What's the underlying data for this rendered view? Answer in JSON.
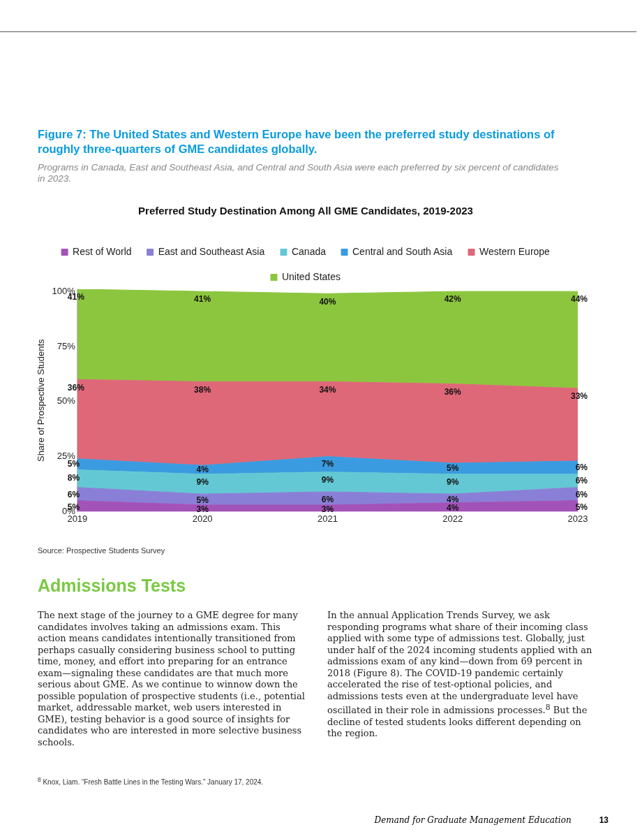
{
  "chart_data": {
    "type": "area",
    "title": "Figure 7: The United States and Western Europe have been the preferred study destinations of roughly three-quarters of GME candidates globally.",
    "subtitle": "Programs in Canada, East and Southeast Asia, and Central and South Asia were each preferred by six percent of candidates in 2023.",
    "annotations": [
      "Preferred Study Destination Among All GME Candidates, 2019-2023",
      "Source: Prospective Students Survey",
      "Admissions Tests",
      "The next stage of the journey to a GME degree for many candidates involves taking an admissions exam. This action means candidates intentionally transitioned from perhaps casually considering business school to putting time, money, and effort into preparing for an entrance exam—signaling these candidates are that much more serious about GME. As we continue to winnow down the possible population of prospective students (i.e., potential market, addressable market, web users interested in GME), testing behavior is a good source of insights for candidates who are interested in more selective business schools.",
      "In the annual Application Trends Survey, we ask responding programs what share of their incoming class applied with some type of admissions test. Globally, just under half of the 2024 incoming students applied with an admissions exam of any kind—down from 69 percent in 2018 (Figure 8). The COVID-19 pandemic certainly accelerated the rise of test-optional policies, and admissions tests even at the undergraduate level have oscillated in their role in admissions processes.$^{8}$ But the decline of tested students looks different depending on the region.",
      "$^{8}$ Knox, Liam. “Fresh Battle Lines in the Testing Wars.” January 17, 2024.",
      "Demand for Graduate Management Education",
      "13"
    ],
    "ylabel": "Share of Prospective Students",
    "categories": [
      "2019",
      "2020",
      "2021",
      "2022",
      "2023"
    ],
    "stacked": true,
    "legend": "top",
    "grid": false,
    "ylim": [
      0,
      101
    ],
    "yticks": [
      {
        "value": 0,
        "label": "0%"
      },
      {
        "value": 25,
        "label": "25%"
      },
      {
        "value": 50,
        "label": "50%"
      },
      {
        "value": 75,
        "label": "75%"
      },
      {
        "value": 100,
        "label": "100%"
      }
    ],
    "series": [
      {
        "name": "Rest of World",
        "color": "#a352b8",
        "values": [
          5,
          3,
          3,
          4,
          5
        ],
        "value_labels": [
          "5%",
          "3%",
          "3%",
          "4%",
          "5%"
        ]
      },
      {
        "name": "East and Southeast Asia",
        "color": "#8a7fd6",
        "values": [
          6,
          5,
          6,
          4,
          6
        ],
        "value_labels": [
          "6%",
          "5%",
          "6%",
          "4%",
          "6%"
        ]
      },
      {
        "name": "Canada",
        "color": "#64c8d4",
        "values": [
          8,
          9,
          9,
          9,
          6
        ],
        "value_labels": [
          "8%",
          "9%",
          "9%",
          "9%",
          "6%"
        ]
      },
      {
        "name": "Central and South Asia",
        "color": "#3b9be0",
        "values": [
          5,
          4,
          7,
          5,
          6
        ],
        "value_labels": [
          "5%",
          "4%",
          "7%",
          "5%",
          "6%"
        ]
      },
      {
        "name": "Western Europe",
        "color": "#de6878",
        "values": [
          36,
          38,
          34,
          36,
          33
        ],
        "value_labels": [
          "36%",
          "38%",
          "34%",
          "36%",
          "33%"
        ]
      },
      {
        "name": "United States",
        "color": "#8cc63f",
        "values": [
          41,
          41,
          40,
          42,
          44
        ],
        "value_labels": [
          "41%",
          "41%",
          "40%",
          "42%",
          "44%"
        ]
      }
    ]
  }
}
